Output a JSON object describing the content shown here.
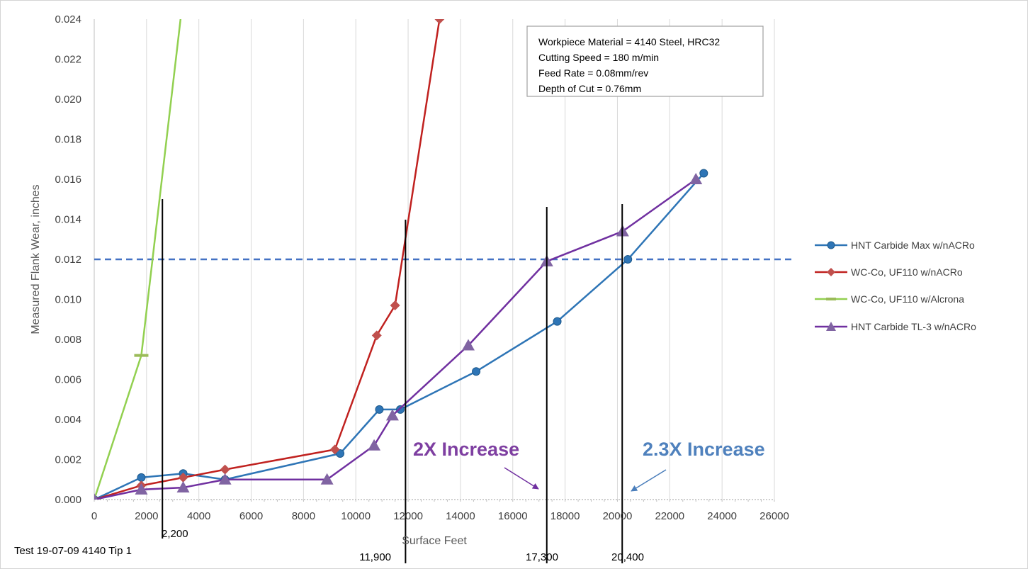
{
  "chart_data": {
    "type": "line",
    "xlabel": "Surface Feet",
    "ylabel": "Measured Flank Wear, inches",
    "xlim": [
      0,
      26000
    ],
    "ylim": [
      0,
      0.024
    ],
    "x_ticks": [
      "0",
      "2000",
      "4000",
      "6000",
      "8000",
      "10000",
      "12000",
      "14000",
      "16000",
      "18000",
      "20000",
      "22000",
      "24000",
      "26000"
    ],
    "y_ticks": [
      "0.000",
      "0.002",
      "0.004",
      "0.006",
      "0.008",
      "0.010",
      "0.012",
      "0.014",
      "0.016",
      "0.018",
      "0.020",
      "0.022",
      "0.024"
    ],
    "grid": "vertical",
    "legend_position": "right",
    "series": [
      {
        "name": "HNT Carbide Max w/nACRo",
        "color": "#2e75b6",
        "marker": "circle",
        "points": [
          [
            0,
            0.0
          ],
          [
            1800,
            0.0011
          ],
          [
            3400,
            0.0013
          ],
          [
            5000,
            0.001
          ],
          [
            9400,
            0.0023
          ],
          [
            10900,
            0.0045
          ],
          [
            11700,
            0.0045
          ],
          [
            14600,
            0.0064
          ],
          [
            17700,
            0.0089
          ],
          [
            20400,
            0.012
          ],
          [
            23300,
            0.0163
          ]
        ]
      },
      {
        "name": "WC-Co, UF110 w/nACRo",
        "color": "#c0211f",
        "marker": "diamond",
        "points": [
          [
            0,
            0.0
          ],
          [
            1800,
            0.0007
          ],
          [
            3400,
            0.0011
          ],
          [
            5000,
            0.0015
          ],
          [
            9200,
            0.0025
          ],
          [
            10800,
            0.0082
          ],
          [
            11500,
            0.0097
          ],
          [
            13200,
            0.024
          ]
        ]
      },
      {
        "name": "WC-Co, UF110 w/Alcrona",
        "color": "#92d050",
        "marker": "dash",
        "points": [
          [
            0,
            0.0
          ],
          [
            1800,
            0.0072
          ],
          [
            3300,
            0.024
          ]
        ]
      },
      {
        "name": "HNT Carbide TL-3 w/nACRo",
        "color": "#7030a0",
        "marker": "triangle",
        "points": [
          [
            0,
            0.0
          ],
          [
            1800,
            0.0005
          ],
          [
            3400,
            0.0006
          ],
          [
            5000,
            0.001
          ],
          [
            8900,
            0.001
          ],
          [
            10700,
            0.0027
          ],
          [
            11400,
            0.0042
          ],
          [
            14300,
            0.0077
          ],
          [
            17300,
            0.0119
          ],
          [
            20200,
            0.0134
          ],
          [
            23000,
            0.016
          ]
        ]
      }
    ],
    "threshold": {
      "y": 0.012,
      "color": "#4472c4",
      "style": "dashed"
    },
    "markers": [
      {
        "x": 2200,
        "label": "2,200",
        "label_pos": "below-right"
      },
      {
        "x": 11900,
        "label": "11,900",
        "label_pos": "below-left"
      },
      {
        "x": 17300,
        "label": "17,300",
        "label_pos": "below"
      },
      {
        "x": 20400,
        "label": "20,400",
        "label_pos": "below"
      }
    ],
    "annotations": [
      {
        "text": "2X Increase",
        "color": "#7e3fa1"
      },
      {
        "text": "2.3X Increase",
        "color": "#4f81bd"
      }
    ],
    "info_box": [
      "Workpiece Material = 4140 Steel, HRC32",
      "Cutting Speed = 180 m/min",
      "Feed Rate = 0.08mm/rev",
      "Depth of Cut = 0.76mm"
    ],
    "footnote": "Test 19-07-09 4140 Tip 1"
  }
}
